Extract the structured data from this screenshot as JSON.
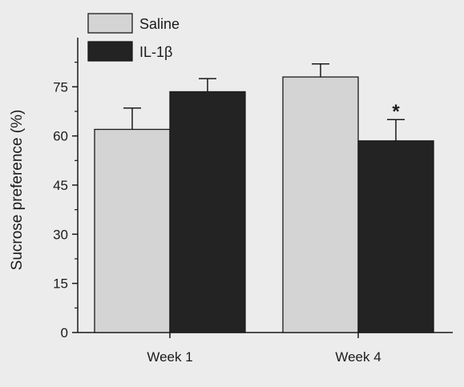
{
  "chart_data": {
    "type": "bar",
    "categories": [
      "Week 1",
      "Week 4"
    ],
    "series": [
      {
        "name": "Saline",
        "values": [
          62,
          78
        ],
        "errors": [
          6.5,
          4
        ],
        "color": "#d4d4d4"
      },
      {
        "name": "IL-1β",
        "values": [
          73.5,
          58.5
        ],
        "errors": [
          4,
          6.5
        ],
        "color": "#232323"
      }
    ],
    "ylabel": "Sucrose preference (%)",
    "xlabel": "",
    "ylim": [
      0,
      90
    ],
    "yticks": [
      0,
      15,
      30,
      45,
      60,
      75
    ],
    "significance": [
      {
        "category": "Week 4",
        "series": "IL-1β",
        "label": "*"
      }
    ],
    "legend": "top-left",
    "grid": false
  }
}
